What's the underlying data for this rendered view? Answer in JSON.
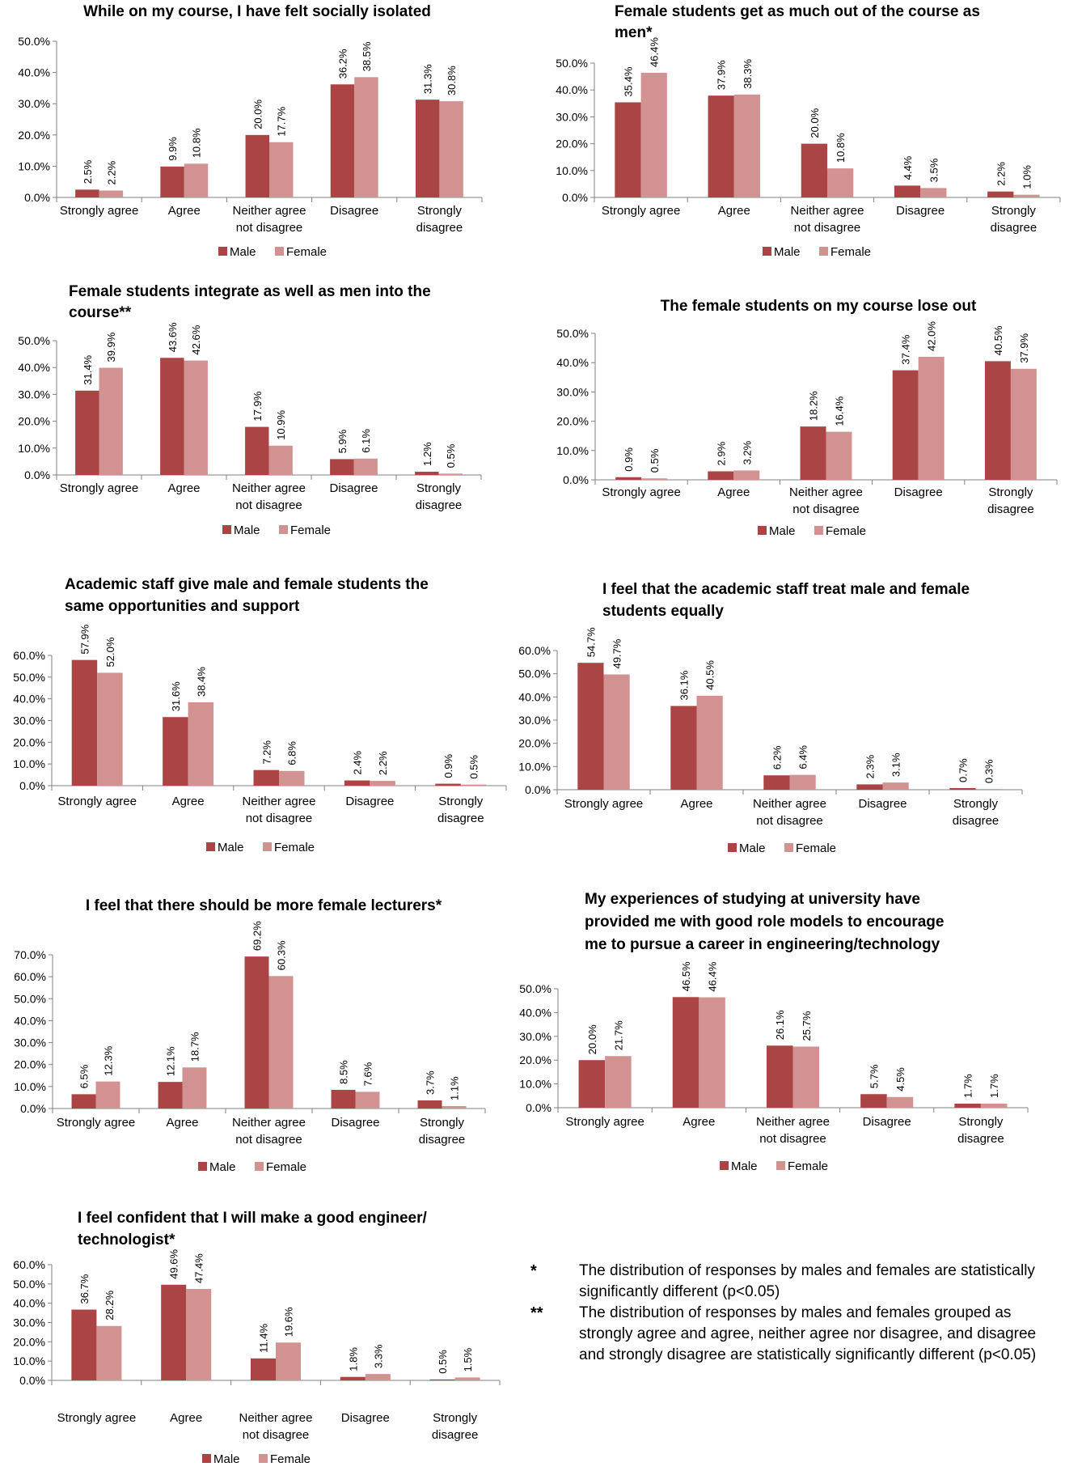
{
  "colors": {
    "male": "#ab4445",
    "female": "#d39292",
    "axis": "#808080"
  },
  "chart_data": [
    {
      "type": "bar",
      "title": "While on my course, I have felt socially isolated",
      "categories": [
        "Strongly agree",
        "Agree",
        "Neither agree not disagree",
        "Disagree",
        "Strongly disagree"
      ],
      "ylim": [
        0,
        50
      ],
      "yticks": [
        "0.0%",
        "10.0%",
        "20.0%",
        "30.0%",
        "40.0%",
        "50.0%"
      ],
      "legend": "bottom",
      "series": [
        {
          "name": "Male",
          "values": [
            2.5,
            9.9,
            20.0,
            36.2,
            31.3
          ],
          "labels": [
            "2.5%",
            "9.9%",
            "20.0%",
            "36.2%",
            "31.3%"
          ]
        },
        {
          "name": "Female",
          "values": [
            2.2,
            10.8,
            17.7,
            38.5,
            30.8
          ],
          "labels": [
            "2.2%",
            "10.8%",
            "17.7%",
            "38.5%",
            "30.8%"
          ]
        }
      ]
    },
    {
      "type": "bar",
      "title": "Female students get as much out of the course as men*",
      "categories": [
        "Strongly agree",
        "Agree",
        "Neither agree not disagree",
        "Disagree",
        "Strongly disagree"
      ],
      "ylim": [
        0,
        50
      ],
      "yticks": [
        "0.0%",
        "10.0%",
        "20.0%",
        "30.0%",
        "40.0%",
        "50.0%"
      ],
      "legend": "bottom",
      "series": [
        {
          "name": "Male",
          "values": [
            35.4,
            37.9,
            20.0,
            4.4,
            2.2
          ],
          "labels": [
            "35.4%",
            "37.9%",
            "20.0%",
            "4.4%",
            "2.2%"
          ]
        },
        {
          "name": "Female",
          "values": [
            46.4,
            38.3,
            10.8,
            3.5,
            1.0
          ],
          "labels": [
            "46.4%",
            "38.3%",
            "10.8%",
            "3.5%",
            "1.0%"
          ]
        }
      ]
    },
    {
      "type": "bar",
      "title": "Female students integrate as well as men into the course**",
      "categories": [
        "Strongly agree",
        "Agree",
        "Neither agree not disagree",
        "Disagree",
        "Strongly disagree"
      ],
      "ylim": [
        0,
        50
      ],
      "yticks": [
        "0.0%",
        "10.0%",
        "20.0%",
        "30.0%",
        "40.0%",
        "50.0%"
      ],
      "legend": "bottom",
      "series": [
        {
          "name": "Male",
          "values": [
            31.4,
            43.6,
            17.9,
            5.9,
            1.2
          ],
          "labels": [
            "31.4%",
            "43.6%",
            "17.9%",
            "5.9%",
            "1.2%"
          ]
        },
        {
          "name": "Female",
          "values": [
            39.9,
            42.6,
            10.9,
            6.1,
            0.5
          ],
          "labels": [
            "39.9%",
            "42.6%",
            "10.9%",
            "6.1%",
            "0.5%"
          ]
        }
      ]
    },
    {
      "type": "bar",
      "title": "The female students on my course lose out",
      "categories": [
        "Strongly agree",
        "Agree",
        "Neither agree not disagree",
        "Disagree",
        "Strongly disagree"
      ],
      "ylim": [
        0,
        50
      ],
      "yticks": [
        "0.0%",
        "10.0%",
        "20.0%",
        "30.0%",
        "40.0%",
        "50.0%"
      ],
      "legend": "bottom",
      "series": [
        {
          "name": "Male",
          "values": [
            0.9,
            2.9,
            18.2,
            37.4,
            40.5
          ],
          "labels": [
            "0.9%",
            "2.9%",
            "18.2%",
            "37.4%",
            "40.5%"
          ]
        },
        {
          "name": "Female",
          "values": [
            0.5,
            3.2,
            16.4,
            42.0,
            37.9
          ],
          "labels": [
            "0.5%",
            "3.2%",
            "16.4%",
            "42.0%",
            "37.9%"
          ]
        }
      ]
    },
    {
      "type": "bar",
      "title": "Academic staff give male and female students the same opportunities and support",
      "categories": [
        "Strongly agree",
        "Agree",
        "Neither agree not disagree",
        "Disagree",
        "Strongly disagree"
      ],
      "ylim": [
        0,
        60
      ],
      "yticks": [
        "0.0%",
        "10.0%",
        "20.0%",
        "30.0%",
        "40.0%",
        "50.0%",
        "60.0%"
      ],
      "legend": "bottom",
      "series": [
        {
          "name": "Male",
          "values": [
            57.9,
            31.6,
            7.2,
            2.4,
            0.9
          ],
          "labels": [
            "57.9%",
            "31.6%",
            "7.2%",
            "2.4%",
            "0.9%"
          ]
        },
        {
          "name": "Female",
          "values": [
            52.0,
            38.4,
            6.8,
            2.2,
            0.5
          ],
          "labels": [
            "52.0%",
            "38.4%",
            "6.8%",
            "2.2%",
            "0.5%"
          ]
        }
      ]
    },
    {
      "type": "bar",
      "title": "I feel that the academic staff treat male and female students equally",
      "categories": [
        "Strongly agree",
        "Agree",
        "Neither agree not disagree",
        "Disagree",
        "Strongly disagree"
      ],
      "ylim": [
        0,
        60
      ],
      "yticks": [
        "0.0%",
        "10.0%",
        "20.0%",
        "30.0%",
        "40.0%",
        "50.0%",
        "60.0%"
      ],
      "legend": "bottom",
      "series": [
        {
          "name": "Male",
          "values": [
            54.7,
            36.1,
            6.2,
            2.3,
            0.7
          ],
          "labels": [
            "54.7%",
            "36.1%",
            "6.2%",
            "2.3%",
            "0.7%"
          ]
        },
        {
          "name": "Female",
          "values": [
            49.7,
            40.5,
            6.4,
            3.1,
            0.3
          ],
          "labels": [
            "49.7%",
            "40.5%",
            "6.4%",
            "3.1%",
            "0.3%"
          ]
        }
      ]
    },
    {
      "type": "bar",
      "title": "I feel that there should be more female lecturers*",
      "categories": [
        "Strongly agree",
        "Agree",
        "Neither agree not disagree",
        "Disagree",
        "Strongly disagree"
      ],
      "ylim": [
        0,
        70
      ],
      "yticks": [
        "0.0%",
        "10.0%",
        "20.0%",
        "30.0%",
        "40.0%",
        "50.0%",
        "60.0%",
        "70.0%"
      ],
      "legend": "bottom",
      "series": [
        {
          "name": "Male",
          "values": [
            6.5,
            12.1,
            69.2,
            8.5,
            3.7
          ],
          "labels": [
            "6.5%",
            "12.1%",
            "69.2%",
            "8.5%",
            "3.7%"
          ]
        },
        {
          "name": "Female",
          "values": [
            12.3,
            18.7,
            60.3,
            7.6,
            1.1
          ],
          "labels": [
            "12.3%",
            "18.7%",
            "60.3%",
            "7.6%",
            "1.1%"
          ]
        }
      ]
    },
    {
      "type": "bar",
      "title": "My experiences of studying at university have provided me with good role models to encourage me to pursue a career in engineering/technology",
      "categories": [
        "Strongly agree",
        "Agree",
        "Neither agree not disagree",
        "Disagree",
        "Strongly disagree"
      ],
      "ylim": [
        0,
        50
      ],
      "yticks": [
        "0.0%",
        "10.0%",
        "20.0%",
        "30.0%",
        "40.0%",
        "50.0%"
      ],
      "legend": "bottom",
      "series": [
        {
          "name": "Male",
          "values": [
            20.0,
            46.5,
            26.1,
            5.7,
            1.7
          ],
          "labels": [
            "20.0%",
            "46.5%",
            "26.1%",
            "5.7%",
            "1.7%"
          ]
        },
        {
          "name": "Female",
          "values": [
            21.7,
            46.4,
            25.7,
            4.5,
            1.7
          ],
          "labels": [
            "21.7%",
            "46.4%",
            "25.7%",
            "4.5%",
            "1.7%"
          ]
        }
      ]
    },
    {
      "type": "bar",
      "title": "I feel confident that I will make a good engineer/ technologist*",
      "categories": [
        "Strongly agree",
        "Agree",
        "Neither agree not disagree",
        "Disagree",
        "Strongly disagree"
      ],
      "ylim": [
        0,
        60
      ],
      "yticks": [
        "0.0%",
        "10.0%",
        "20.0%",
        "30.0%",
        "40.0%",
        "50.0%",
        "60.0%"
      ],
      "legend": "bottom",
      "series": [
        {
          "name": "Male",
          "values": [
            36.7,
            49.6,
            11.4,
            1.8,
            0.5
          ],
          "labels": [
            "36.7%",
            "49.6%",
            "11.4%",
            "1.8%",
            "0.5%"
          ]
        },
        {
          "name": "Female",
          "values": [
            28.2,
            47.4,
            19.6,
            3.3,
            1.5
          ],
          "labels": [
            "28.2%",
            "47.4%",
            "19.6%",
            "3.3%",
            "1.5%"
          ]
        }
      ]
    }
  ],
  "footnotes": [
    {
      "mark": "*",
      "text": "The distribution of responses by males and females are statistically significantly different (p<0.05)"
    },
    {
      "mark": "**",
      "text": "The distribution of responses by males and females grouped as strongly agree and agree, neither agree nor disagree, and disagree and strongly disagree are statistically significantly different (p<0.05)"
    }
  ]
}
